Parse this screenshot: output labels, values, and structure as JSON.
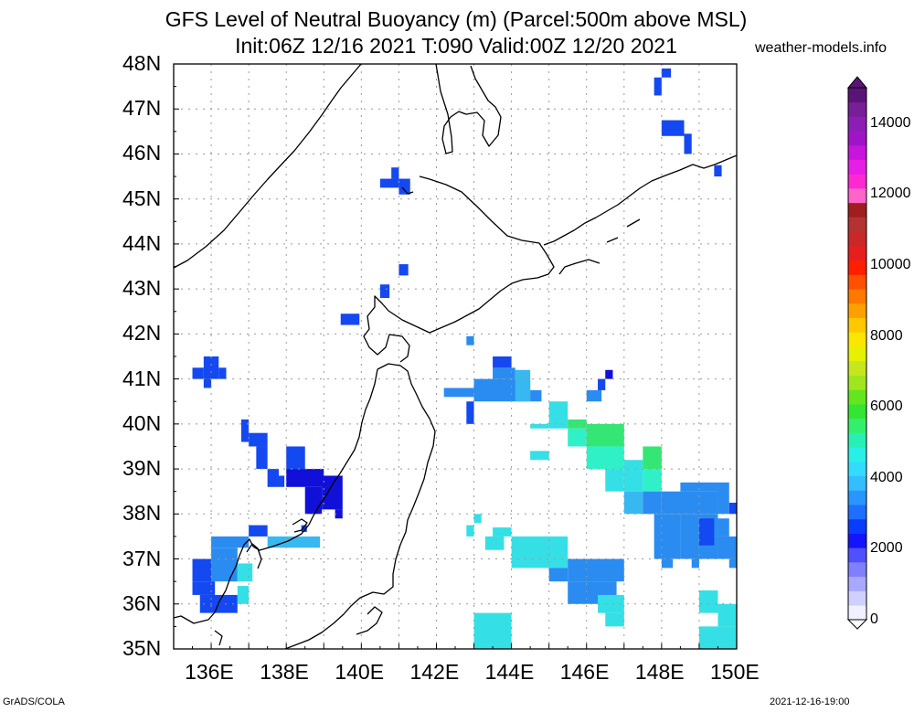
{
  "title_line1": "GFS Level of Neutral Buoyancy (m) (Parcel:500m above MSL)",
  "title_line2": "Init:06Z 12/16 2021 T:090 Valid:00Z 12/20 2021",
  "site": "weather-models.info",
  "footer_left": "GrADS/COLA",
  "footer_right": "2021-12-16-19:00",
  "lat_labels": [
    "48N",
    "47N",
    "46N",
    "45N",
    "44N",
    "43N",
    "42N",
    "41N",
    "40N",
    "39N",
    "38N",
    "37N",
    "36N",
    "35N"
  ],
  "lon_labels": [
    "136E",
    "138E",
    "140E",
    "142E",
    "144E",
    "146E",
    "148E",
    "150E"
  ],
  "colorbar": {
    "labels": [
      "0",
      "2000",
      "4000",
      "6000",
      "8000",
      "10000",
      "12000",
      "14000"
    ],
    "colors": [
      "#f0f0ff",
      "#d0d0ff",
      "#a8a8ff",
      "#8080ff",
      "#5050ff",
      "#1414ff",
      "#0a3cff",
      "#1e6eff",
      "#2896ff",
      "#32beff",
      "#32dcff",
      "#28f0e6",
      "#28f0b4",
      "#32f06e",
      "#32e632",
      "#64e61e",
      "#a0e61e",
      "#c8e61e",
      "#e6f000",
      "#fae600",
      "#ffc800",
      "#ffa000",
      "#ff7800",
      "#ff5000",
      "#ff1e00",
      "#e61e1e",
      "#c82828",
      "#b43232",
      "#a01e1e",
      "#ff64c8",
      "#ff28d2",
      "#e61ee6",
      "#c814dc",
      "#a014c8",
      "#8c1eb4",
      "#781e96",
      "#5a1478"
    ]
  },
  "data_colors": {
    "very_high": "#1010d8",
    "high": "#1448f0",
    "mid": "#2a8cf0",
    "low": "#38b8f0",
    "cyan": "#34e0e6",
    "teal": "#30f0c8",
    "green": "#34e674"
  }
}
